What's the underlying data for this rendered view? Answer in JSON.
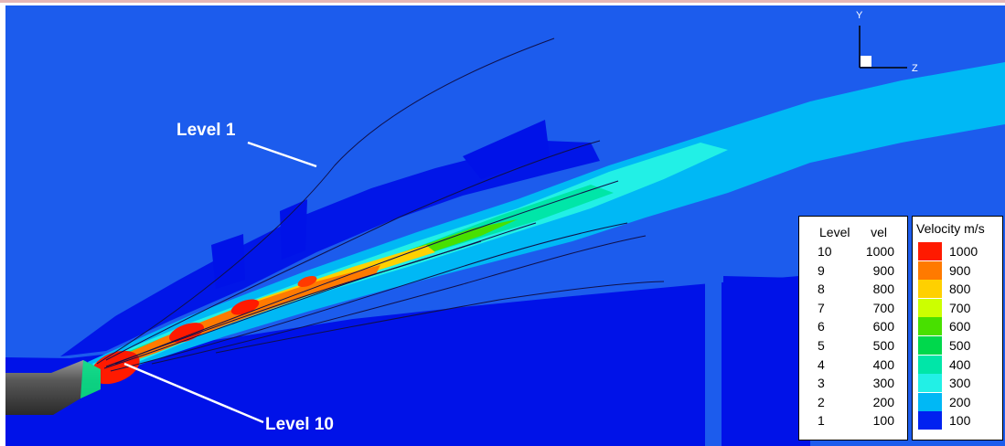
{
  "callouts": {
    "level_1": "Level 1",
    "level_10": "Level 10"
  },
  "axis_triad": {
    "y": "Y",
    "z": "Z"
  },
  "level_table": {
    "headers": [
      "Level",
      "vel"
    ],
    "rows": [
      {
        "level": "10",
        "vel": "1000"
      },
      {
        "level": "9",
        "vel": "900"
      },
      {
        "level": "8",
        "vel": "800"
      },
      {
        "level": "7",
        "vel": "700"
      },
      {
        "level": "6",
        "vel": "600"
      },
      {
        "level": "5",
        "vel": "500"
      },
      {
        "level": "4",
        "vel": "400"
      },
      {
        "level": "3",
        "vel": "300"
      },
      {
        "level": "2",
        "vel": "200"
      },
      {
        "level": "1",
        "vel": "100"
      }
    ]
  },
  "velocity_legend": {
    "title": "Velocity m/s",
    "entries": [
      {
        "label": "1000",
        "color": "#ff1a00"
      },
      {
        "label": "900",
        "color": "#ff7a00"
      },
      {
        "label": "800",
        "color": "#ffd000"
      },
      {
        "label": "700",
        "color": "#ccff00"
      },
      {
        "label": "600",
        "color": "#48e000"
      },
      {
        "label": "500",
        "color": "#00d84c"
      },
      {
        "label": "400",
        "color": "#00e6a8"
      },
      {
        "label": "300",
        "color": "#22f0e6"
      },
      {
        "label": "200",
        "color": "#00b8f5"
      },
      {
        "label": "100",
        "color": "#0022f0"
      }
    ]
  },
  "colors": {
    "background_blue": "#1c5ced",
    "deep_blue": "#0012e8",
    "nozzle_grey": "#4b4b4b"
  }
}
